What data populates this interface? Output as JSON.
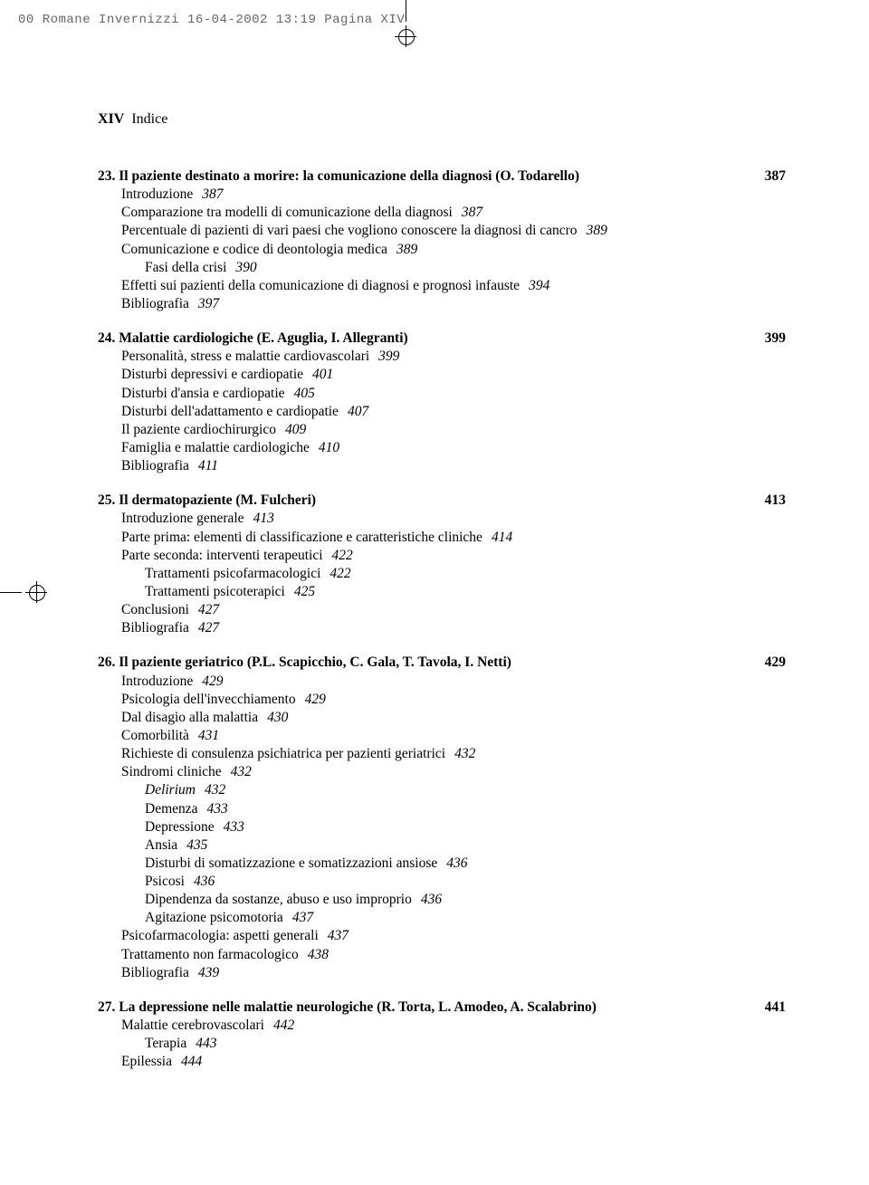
{
  "header_info": "00 Romane Invernizzi  16-04-2002  13:19  Pagina XIV",
  "page_label_roman": "XIV",
  "page_label_text": "Indice",
  "chapters": [
    {
      "num": "23.",
      "title": "Il paziente destinato a morire: la comunicazione della diagnosi (O. Todarello)",
      "page": "387",
      "lines": [
        {
          "text": "Introduzione",
          "page": "387",
          "indent": 0
        },
        {
          "text": "Comparazione tra modelli di comunicazione della diagnosi",
          "page": "387",
          "indent": 0
        },
        {
          "text": "Percentuale di pazienti di vari paesi che vogliono conoscere la diagnosi di cancro",
          "page": "389",
          "indent": 0
        },
        {
          "text": "Comunicazione e codice di deontologia medica",
          "page": "389",
          "indent": 0
        },
        {
          "text": "Fasi della crisi",
          "page": "390",
          "indent": 1
        },
        {
          "text": "Effetti sui pazienti della comunicazione di diagnosi e prognosi infauste",
          "page": "394",
          "indent": 0
        },
        {
          "text": "Bibliografia",
          "page": "397",
          "indent": 0
        }
      ]
    },
    {
      "num": "24.",
      "title": "Malattie cardiologiche (E. Aguglia, I. Allegranti)",
      "page": "399",
      "lines": [
        {
          "text": "Personalità, stress e malattie cardiovascolari",
          "page": "399",
          "indent": 0
        },
        {
          "text": "Disturbi depressivi e cardiopatie",
          "page": "401",
          "indent": 0
        },
        {
          "text": "Disturbi d'ansia e cardiopatie",
          "page": "405",
          "indent": 0
        },
        {
          "text": "Disturbi dell'adattamento e cardiopatie",
          "page": "407",
          "indent": 0
        },
        {
          "text": "Il paziente cardiochirurgico",
          "page": "409",
          "indent": 0
        },
        {
          "text": "Famiglia e malattie cardiologiche",
          "page": "410",
          "indent": 0
        },
        {
          "text": "Bibliografia",
          "page": "411",
          "indent": 0
        }
      ]
    },
    {
      "num": "25.",
      "title": "Il dermatopaziente (M. Fulcheri)",
      "page": "413",
      "lines": [
        {
          "text": "Introduzione generale",
          "page": "413",
          "indent": 0
        },
        {
          "text": "Parte prima: elementi di classificazione e caratteristiche cliniche",
          "page": "414",
          "indent": 0
        },
        {
          "text": "Parte seconda: interventi terapeutici",
          "page": "422",
          "indent": 0
        },
        {
          "text": "Trattamenti psicofarmacologici",
          "page": "422",
          "indent": 1
        },
        {
          "text": "Trattamenti psicoterapici",
          "page": "425",
          "indent": 1
        },
        {
          "text": "Conclusioni",
          "page": "427",
          "indent": 0
        },
        {
          "text": "Bibliografia",
          "page": "427",
          "indent": 0
        }
      ]
    },
    {
      "num": "26.",
      "title": "Il paziente geriatrico (P.L. Scapicchio, C. Gala, T. Tavola, I. Netti)",
      "page": "429",
      "lines": [
        {
          "text": "Introduzione",
          "page": "429",
          "indent": 0
        },
        {
          "text": "Psicologia dell'invecchiamento",
          "page": "429",
          "indent": 0
        },
        {
          "text": "Dal disagio alla malattia",
          "page": "430",
          "indent": 0
        },
        {
          "text": "Comorbilità",
          "page": "431",
          "indent": 0
        },
        {
          "text": "Richieste di consulenza psichiatrica per pazienti geriatrici",
          "page": "432",
          "indent": 0
        },
        {
          "text": "Sindromi cliniche",
          "page": "432",
          "indent": 0
        },
        {
          "text": "Delirium",
          "page": "432",
          "indent": 1,
          "italic": true
        },
        {
          "text": "Demenza",
          "page": "433",
          "indent": 1
        },
        {
          "text": "Depressione",
          "page": "433",
          "indent": 1
        },
        {
          "text": "Ansia",
          "page": "435",
          "indent": 1
        },
        {
          "text": "Disturbi di somatizzazione e somatizzazioni ansiose",
          "page": "436",
          "indent": 1
        },
        {
          "text": "Psicosi",
          "page": "436",
          "indent": 1
        },
        {
          "text": "Dipendenza da sostanze, abuso e uso improprio",
          "page": "436",
          "indent": 1
        },
        {
          "text": "Agitazione psicomotoria",
          "page": "437",
          "indent": 1
        },
        {
          "text": "Psicofarmacologia: aspetti generali",
          "page": "437",
          "indent": 0
        },
        {
          "text": "Trattamento non farmacologico",
          "page": "438",
          "indent": 0
        },
        {
          "text": "Bibliografia",
          "page": "439",
          "indent": 0
        }
      ]
    },
    {
      "num": "27.",
      "title": "La depressione nelle malattie neurologiche (R. Torta, L. Amodeo, A. Scalabrino)",
      "page": "441",
      "lines": [
        {
          "text": "Malattie cerebrovascolari",
          "page": "442",
          "indent": 0
        },
        {
          "text": "Terapia",
          "page": "443",
          "indent": 1
        },
        {
          "text": "Epilessia",
          "page": "444",
          "indent": 0
        }
      ]
    }
  ]
}
